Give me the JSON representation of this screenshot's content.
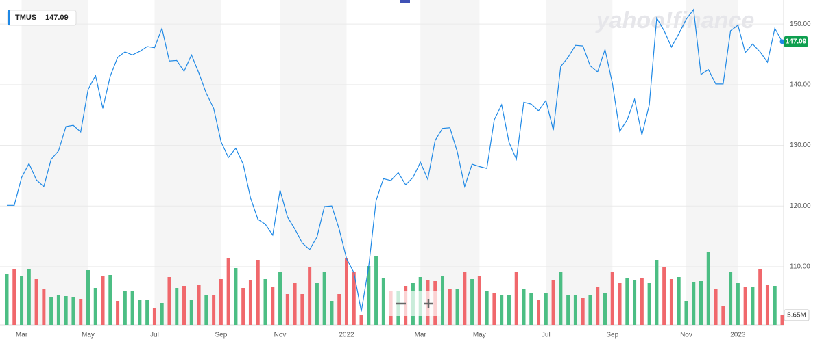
{
  "chart_data": {
    "type": "line",
    "watermark": "yahoo!finance",
    "categories": [
      null,
      null,
      "Mar",
      null,
      null,
      null,
      null,
      null,
      null,
      null,
      null,
      "May",
      null,
      null,
      null,
      null,
      null,
      null,
      null,
      null,
      "Jul",
      null,
      null,
      null,
      null,
      null,
      null,
      null,
      null,
      "Sep",
      null,
      null,
      null,
      null,
      null,
      null,
      null,
      "Nov",
      null,
      null,
      null,
      null,
      null,
      null,
      null,
      null,
      "2022",
      null,
      null,
      null,
      null,
      null,
      null,
      null,
      null,
      null,
      "Mar",
      null,
      null,
      null,
      null,
      null,
      null,
      null,
      "May",
      null,
      null,
      null,
      null,
      null,
      null,
      null,
      null,
      "Jul",
      null,
      null,
      null,
      null,
      null,
      null,
      null,
      null,
      "Sep",
      null,
      null,
      null,
      null,
      null,
      null,
      null,
      null,
      null,
      "Nov",
      null,
      null,
      null,
      null,
      null,
      null,
      "2023",
      null,
      null,
      null,
      null,
      null,
      null
    ],
    "series": [
      {
        "name": "TMUS",
        "color": "#1e88e5",
        "values": [
          120.1,
          120.1,
          124.7,
          127.0,
          124.3,
          123.2,
          127.7,
          129.1,
          133.1,
          133.3,
          132.2,
          139.2,
          141.5,
          136.1,
          141.4,
          144.5,
          145.4,
          144.9,
          145.5,
          146.3,
          146.1,
          149.3,
          143.9,
          144.0,
          142.2,
          144.9,
          141.9,
          138.6,
          136.1,
          130.6,
          128.0,
          129.5,
          126.9,
          121.3,
          117.8,
          117.0,
          115.2,
          122.6,
          118.2,
          116.2,
          113.9,
          112.8,
          114.9,
          119.9,
          120.0,
          116.2,
          111.3,
          109.0,
          102.6,
          110.0,
          120.9,
          124.5,
          124.2,
          125.5,
          123.5,
          124.7,
          127.2,
          124.4,
          130.8,
          132.8,
          132.9,
          128.9,
          123.2,
          126.9,
          126.5,
          126.2,
          134.2,
          136.7,
          130.5,
          127.7,
          137.1,
          136.8,
          135.7,
          137.4,
          132.5,
          143.0,
          144.5,
          146.5,
          146.4,
          143.1,
          142.1,
          145.8,
          140.2,
          132.3,
          134.2,
          137.6,
          131.7,
          136.7,
          151.0,
          148.9,
          146.2,
          148.4,
          150.8,
          152.4,
          141.7,
          142.5,
          140.1,
          140.1,
          148.9,
          149.8,
          145.3,
          146.7,
          145.4,
          143.7,
          149.3,
          147.09
        ]
      }
    ],
    "price_tag_color": "#0e9f4f",
    "volume": {
      "axis": "y2",
      "volume_label": "5.65M",
      "values": [
        29.6,
        32.4,
        28.8,
        32.8,
        26.8,
        20.8,
        16.4,
        17.2,
        16.8,
        16.4,
        15.2,
        32,
        21.6,
        28.8,
        29.2,
        14,
        19.6,
        20,
        14.8,
        14.4,
        10,
        12.8,
        28,
        21.6,
        22.8,
        14.8,
        23.6,
        17.2,
        17.2,
        26.8,
        39.2,
        33.2,
        21.6,
        26,
        38,
        26.8,
        22,
        30.8,
        18,
        24.4,
        18,
        33.6,
        24.4,
        30.8,
        14,
        18,
        39.2,
        31.2,
        6,
        34.4,
        40,
        27.6,
        19.6,
        19.6,
        22.8,
        24.4,
        28,
        26.4,
        25.6,
        28.8,
        20.8,
        20.8,
        31.2,
        26.8,
        28.4,
        19.6,
        18.8,
        17.6,
        17.6,
        30.8,
        21.2,
        18.8,
        14.8,
        18.8,
        26.4,
        31.2,
        17.2,
        17.2,
        15.6,
        17.6,
        22.4,
        18.8,
        30.8,
        24.4,
        27.2,
        26,
        27.2,
        24.4,
        38,
        33.6,
        26.8,
        28,
        14,
        25.2,
        25.6,
        42.8,
        20.8,
        10.8,
        31.2,
        24.4,
        22.4,
        22,
        32.4,
        23.6,
        22.8,
        5.65
      ],
      "colors": [
        "#4cbe84",
        "#f0686c",
        "#4cbe84",
        "#4cbe84",
        "#f0686c",
        "#f0686c",
        "#4cbe84",
        "#4cbe84",
        "#4cbe84",
        "#4cbe84",
        "#f0686c",
        "#4cbe84",
        "#4cbe84",
        "#f0686c",
        "#4cbe84",
        "#f0686c",
        "#4cbe84",
        "#4cbe84",
        "#4cbe84",
        "#4cbe84",
        "#f0686c",
        "#4cbe84",
        "#f0686c",
        "#4cbe84",
        "#f0686c",
        "#4cbe84",
        "#f0686c",
        "#4cbe84",
        "#f0686c",
        "#f0686c",
        "#f0686c",
        "#4cbe84",
        "#f0686c",
        "#f0686c",
        "#f0686c",
        "#4cbe84",
        "#f0686c",
        "#4cbe84",
        "#f0686c",
        "#f0686c",
        "#f0686c",
        "#f0686c",
        "#4cbe84",
        "#4cbe84",
        "#4cbe84",
        "#f0686c",
        "#f0686c",
        "#f0686c",
        "#f0686c",
        "#4cbe84",
        "#4cbe84",
        "#4cbe84",
        "#f0686c",
        "#4cbe84",
        "#f0686c",
        "#4cbe84",
        "#4cbe84",
        "#f0686c",
        "#f0686c",
        "#4cbe84",
        "#f0686c",
        "#4cbe84",
        "#f0686c",
        "#4cbe84",
        "#f0686c",
        "#4cbe84",
        "#f0686c",
        "#4cbe84",
        "#4cbe84",
        "#f0686c",
        "#4cbe84",
        "#4cbe84",
        "#f0686c",
        "#4cbe84",
        "#f0686c",
        "#4cbe84",
        "#4cbe84",
        "#4cbe84",
        "#f0686c",
        "#4cbe84",
        "#f0686c",
        "#4cbe84",
        "#f0686c",
        "#f0686c",
        "#4cbe84",
        "#4cbe84",
        "#f0686c",
        "#4cbe84",
        "#4cbe84",
        "#f0686c",
        "#f0686c",
        "#4cbe84",
        "#4cbe84",
        "#4cbe84",
        "#4cbe84",
        "#4cbe84",
        "#f0686c",
        "#f0686c",
        "#4cbe84",
        "#4cbe84",
        "#f0686c",
        "#4cbe84",
        "#f0686c",
        "#f0686c",
        "#4cbe84",
        "#f0686c"
      ]
    },
    "ylim": [
      100.4,
      153.4
    ],
    "y2lim": [
      0,
      188
    ],
    "yticks": [
      {
        "value": 110,
        "label": "110.00"
      },
      {
        "value": 120,
        "label": "120.00"
      },
      {
        "value": 130,
        "label": "130.00"
      },
      {
        "value": 140,
        "label": "140.00"
      },
      {
        "value": 150,
        "label": "150.00"
      }
    ],
    "grid": true
  }
}
